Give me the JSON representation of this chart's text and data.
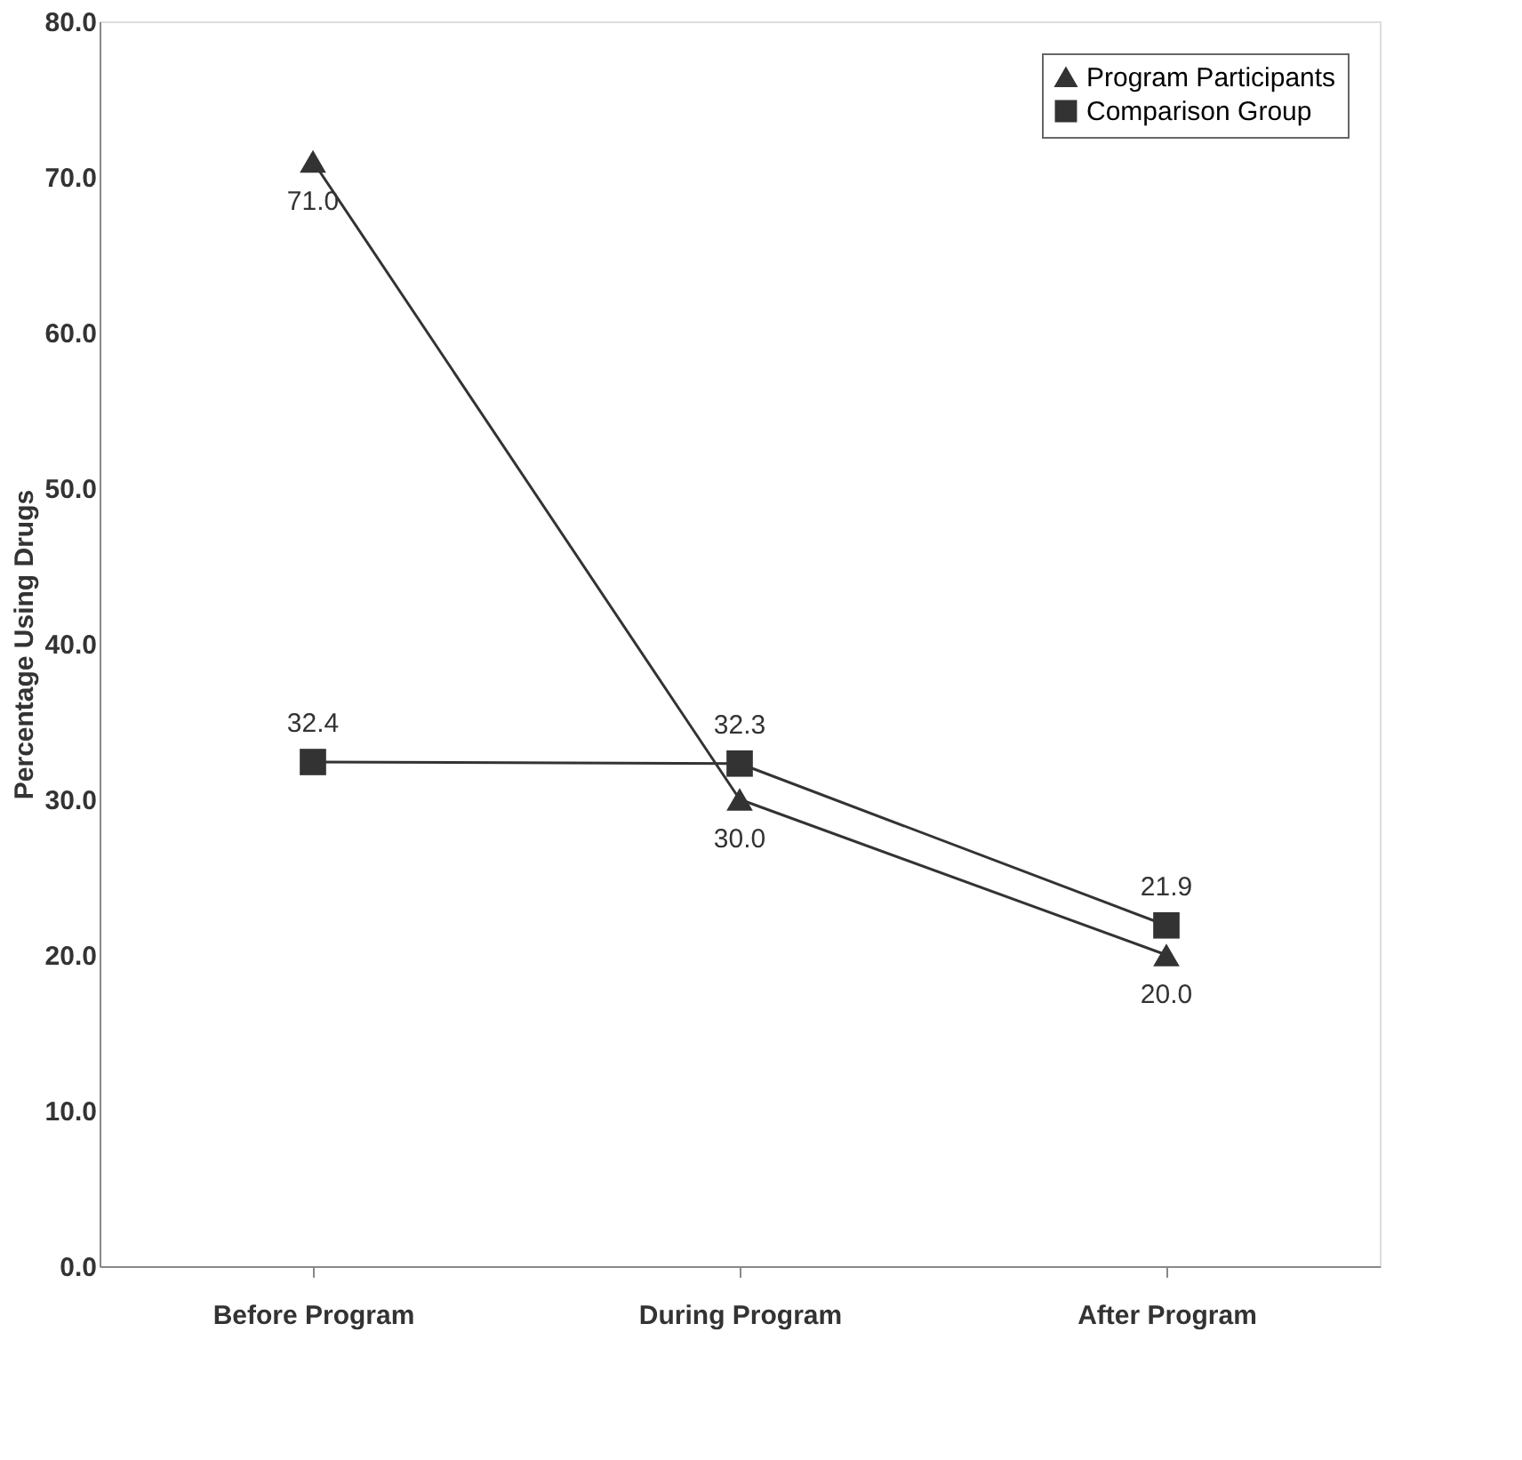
{
  "chart_data": {
    "type": "line",
    "ylabel": "Percentage Using Drugs",
    "categories": [
      "Before Program",
      "During Program",
      "After Program"
    ],
    "series": [
      {
        "name": "Program Participants",
        "color": "#333333",
        "marker": "triangle",
        "values": [
          71.0,
          30.0,
          20.0
        ],
        "value_labels": [
          "71.0",
          "30.0",
          "20.0"
        ]
      },
      {
        "name": "Comparison Group",
        "color": "#333333",
        "marker": "square",
        "values": [
          32.4,
          32.3,
          21.9
        ],
        "value_labels": [
          "32.4",
          "32.3",
          "21.9"
        ]
      }
    ],
    "ylim": [
      0,
      80
    ],
    "yticks": [
      {
        "value": 0,
        "label": "0.0"
      },
      {
        "value": 10,
        "label": "10.0"
      },
      {
        "value": 20,
        "label": "20.0"
      },
      {
        "value": 30,
        "label": "30.0"
      },
      {
        "value": 40,
        "label": "40.0"
      },
      {
        "value": 50,
        "label": "50.0"
      },
      {
        "value": 60,
        "label": "60.0"
      },
      {
        "value": 70,
        "label": "70.0"
      },
      {
        "value": 80,
        "label": "80.0"
      }
    ],
    "grid": false,
    "legend": "top right",
    "line_style": "solid"
  }
}
